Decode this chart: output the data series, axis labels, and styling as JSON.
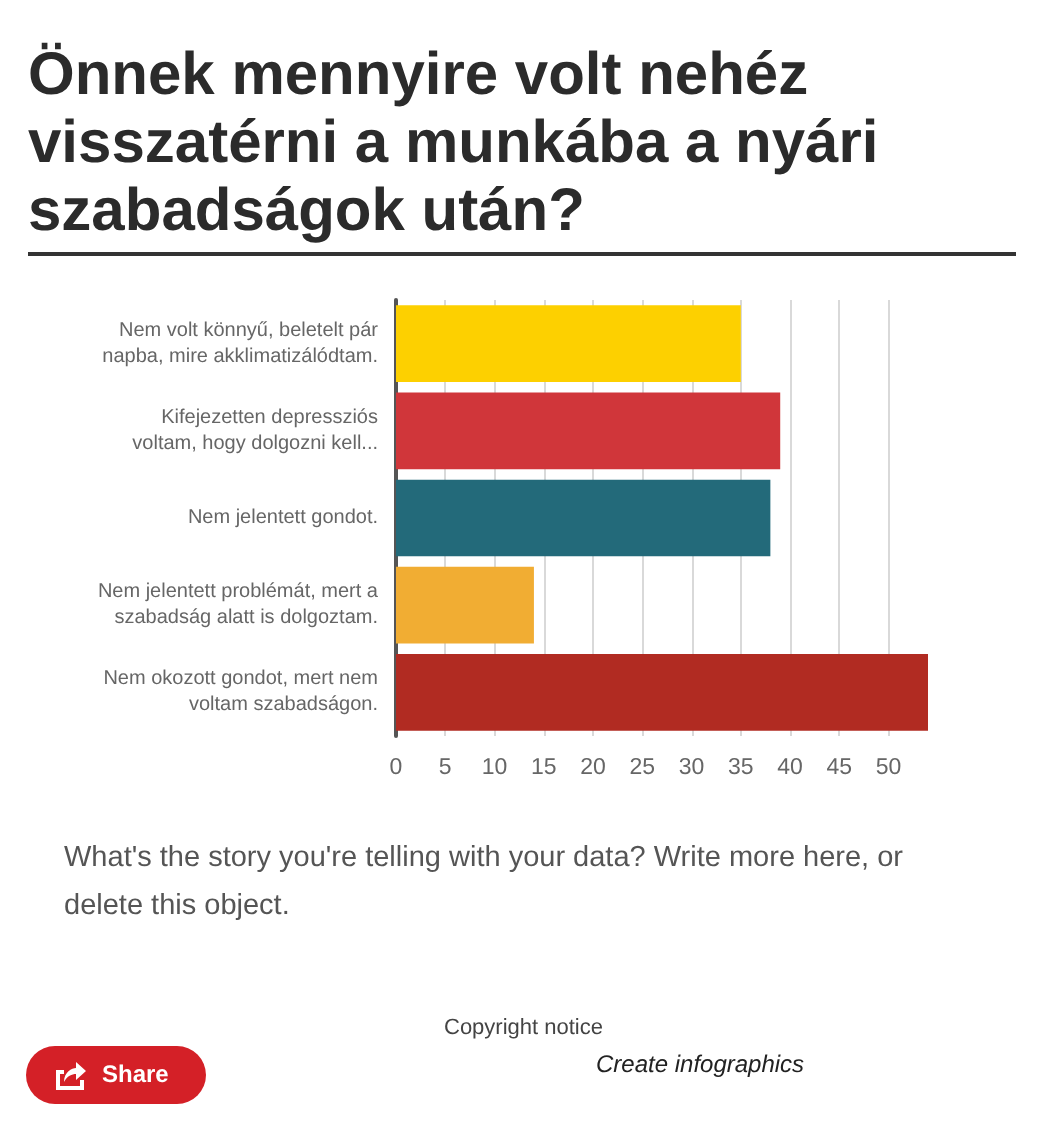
{
  "chart_data": {
    "type": "bar",
    "orientation": "horizontal",
    "title": "Önnek mennyire volt nehéz visszatérni a munkába a nyári szabadságok után?",
    "categories": [
      "Nem volt könnyű, beletelt pár napba, mire akklimatizálódtam.",
      "Kifejezetten depressziós voltam, hogy dolgozni kell...",
      "Nem jelentett gondot.",
      "Nem jelentett problémát, mert a szabadság alatt is dolgoztam.",
      "Nem okozott gondot, mert nem voltam szabadságon."
    ],
    "values": [
      35,
      39,
      38,
      14,
      54
    ],
    "colors": [
      "#fdd000",
      "#d0363a",
      "#236a7a",
      "#f1ad33",
      "#b12b22"
    ],
    "xlim": [
      0,
      54
    ],
    "xticks": [
      0,
      5,
      10,
      15,
      20,
      25,
      30,
      35,
      40,
      45,
      50
    ],
    "grid": "x",
    "annotations": [
      "What's the story you're telling with your data? Write more here, or delete this object.",
      "Copyright notice",
      "Create infographics",
      "Share"
    ]
  }
}
